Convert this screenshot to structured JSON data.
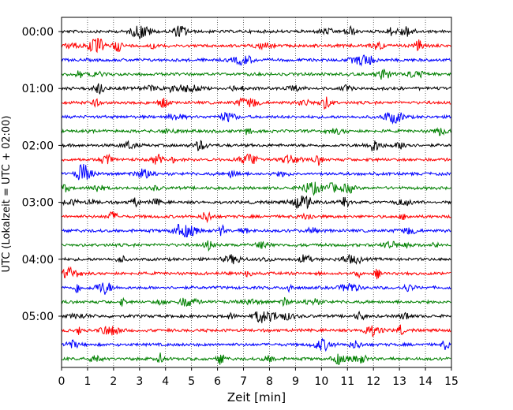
{
  "chart_data": {
    "type": "line",
    "title": "",
    "xlabel": "Zeit  [min]",
    "ylabel": "UTC (Lokalzeit = UTC + 02:00)",
    "xlim": [
      0,
      15
    ],
    "x_ticks": [
      0,
      1,
      2,
      3,
      4,
      5,
      6,
      7,
      8,
      9,
      10,
      11,
      12,
      13,
      14,
      15
    ],
    "x_tick_labels": [
      "0",
      "1",
      "2",
      "3",
      "4",
      "5",
      "6",
      "7",
      "8",
      "9",
      "10",
      "11",
      "12",
      "13",
      "14",
      "15"
    ],
    "y_tick_labels": [
      "00:00",
      "01:00",
      "02:00",
      "03:00",
      "04:00",
      "05:00"
    ],
    "grid": "vertical dotted",
    "trace_color_cycle": [
      "#000000",
      "#ff0000",
      "#0000ff",
      "#008000"
    ],
    "trace_start_times": [
      "00:00",
      "00:15",
      "00:30",
      "00:45",
      "01:00",
      "01:15",
      "01:30",
      "01:45",
      "02:00",
      "02:15",
      "02:30",
      "02:45",
      "03:00",
      "03:15",
      "03:30",
      "03:45",
      "04:00",
      "04:15",
      "04:30",
      "04:45",
      "05:00",
      "05:15",
      "05:30",
      "05:45"
    ],
    "traces_per_hour": 4,
    "trace_count": 24
  }
}
